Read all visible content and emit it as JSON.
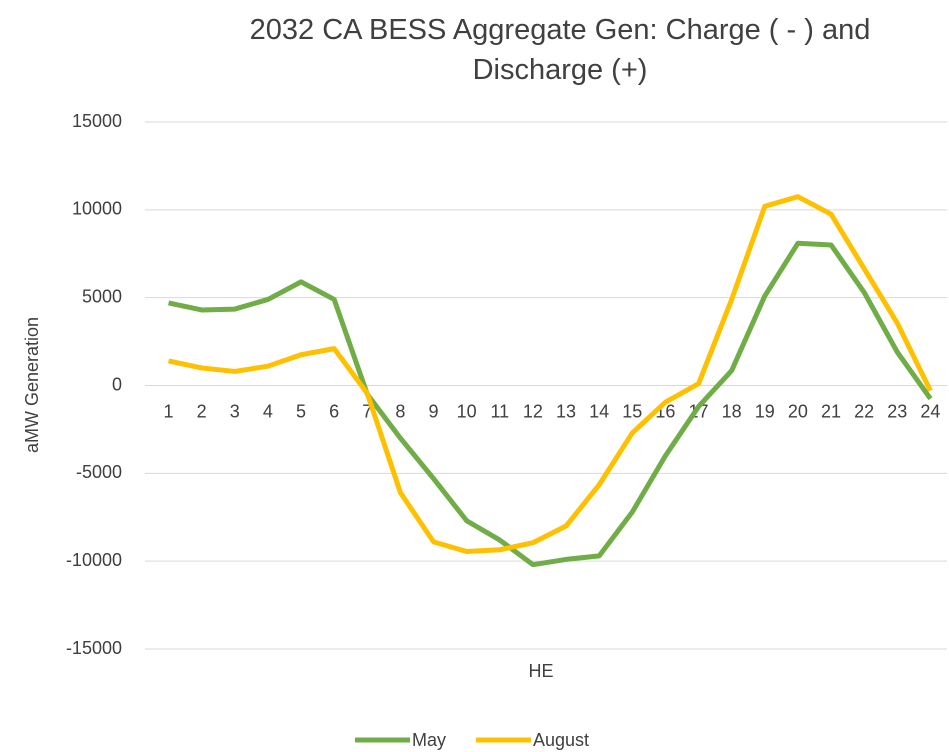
{
  "chart_data": {
    "type": "line",
    "title": "2032 CA BESS Aggregate Gen: Charge ( - ) and Discharge (+)",
    "x_label": "HE",
    "y_label": "aMW Generation",
    "categories": [
      "1",
      "2",
      "3",
      "4",
      "5",
      "6",
      "7",
      "8",
      "9",
      "10",
      "11",
      "12",
      "13",
      "14",
      "15",
      "16",
      "17",
      "18",
      "19",
      "20",
      "21",
      "22",
      "23",
      "24"
    ],
    "series": [
      {
        "name": "May",
        "color": "#70ad47",
        "values": [
          4700,
          4300,
          4350,
          4900,
          5900,
          4900,
          -500,
          -3000,
          -5300,
          -7700,
          -8800,
          -10200,
          -9900,
          -9700,
          -7200,
          -4000,
          -1200,
          850,
          5100,
          8100,
          8000,
          5300,
          1900,
          -750
        ]
      },
      {
        "name": "August",
        "color": "#ffc000",
        "values": [
          1400,
          1000,
          800,
          1100,
          1750,
          2100,
          -450,
          -6100,
          -8900,
          -9450,
          -9350,
          -8950,
          -8000,
          -5650,
          -2700,
          -950,
          100,
          4900,
          10200,
          10750,
          9750,
          6650,
          3550,
          -300
        ]
      }
    ],
    "ylim": [
      -15000,
      15000
    ],
    "yticks": [
      -15000,
      -10000,
      -5000,
      0,
      5000,
      10000,
      15000
    ],
    "grid": true,
    "legend": "bottom"
  }
}
